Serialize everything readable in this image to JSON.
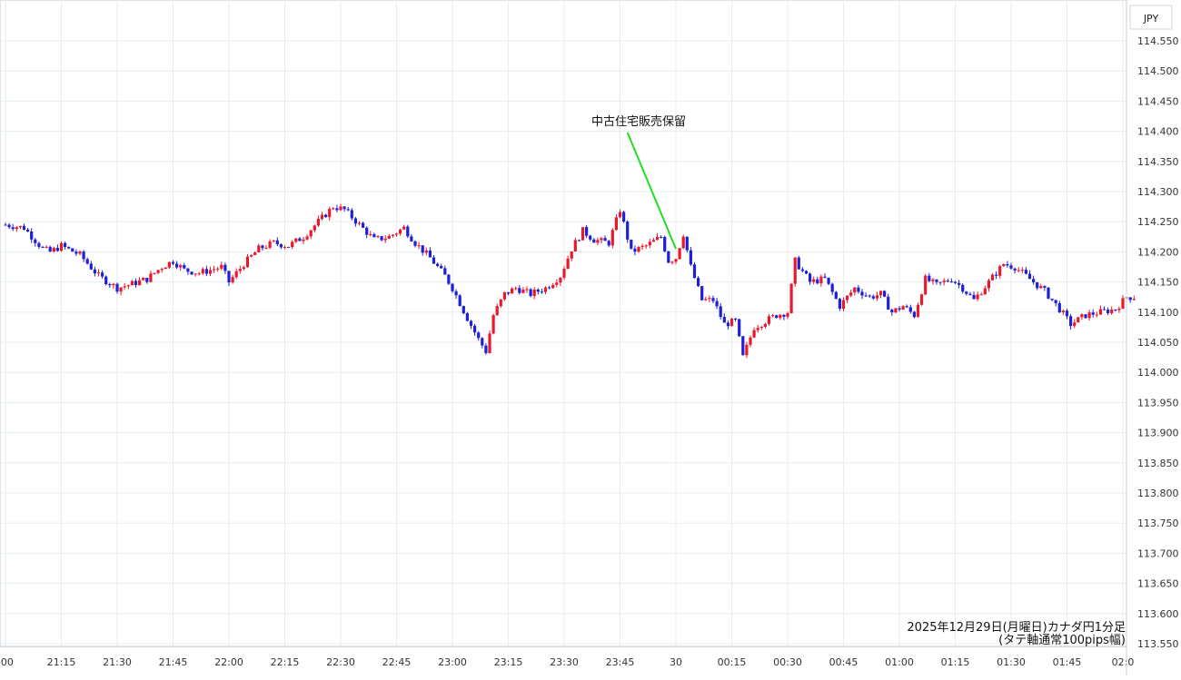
{
  "chart_data": {
    "type": "candlestick",
    "currency_label": "JPY",
    "caption_line1": "2025年12月29日(月曜日)カナダ円1分足",
    "caption_line2": "(タテ軸通常100pips幅)",
    "annotation": "中古住宅販売保留",
    "ylim": [
      113.55,
      114.58
    ],
    "y_ticks": [
      "114.550",
      "114.500",
      "114.450",
      "114.400",
      "114.350",
      "114.300",
      "114.250",
      "114.200",
      "114.150",
      "114.100",
      "114.050",
      "114.000",
      "113.950",
      "113.900",
      "113.850",
      "113.800",
      "113.750",
      "113.700",
      "113.650",
      "113.600",
      "113.550"
    ],
    "x_ticks": [
      ":00",
      "21:15",
      "21:30",
      "21:45",
      "22:00",
      "22:15",
      "22:30",
      "22:45",
      "23:00",
      "23:15",
      "23:30",
      "23:45",
      "30",
      "00:15",
      "00:30",
      "00:45",
      "01:00",
      "01:15",
      "01:30",
      "01:45",
      "02:0"
    ],
    "grid": true,
    "colors": {
      "up": "#e8192c",
      "down": "#1f1fd6",
      "annotation_line": "#22dd22",
      "grid": "#e6eef2"
    },
    "series": [
      {
        "t": "21:00",
        "close": 114.245
      },
      {
        "t": "21:05",
        "close": 114.24
      },
      {
        "t": "21:10",
        "close": 114.205
      },
      {
        "t": "21:12",
        "close": 114.2
      },
      {
        "t": "21:15",
        "close": 114.21
      },
      {
        "t": "21:20",
        "close": 114.195
      },
      {
        "t": "21:25",
        "close": 114.16
      },
      {
        "t": "21:30",
        "close": 114.14
      },
      {
        "t": "21:33",
        "close": 114.145
      },
      {
        "t": "21:38",
        "close": 114.155
      },
      {
        "t": "21:42",
        "close": 114.175
      },
      {
        "t": "21:45",
        "close": 114.185
      },
      {
        "t": "21:48",
        "close": 114.17
      },
      {
        "t": "21:52",
        "close": 114.165
      },
      {
        "t": "21:58",
        "close": 114.175
      },
      {
        "t": "22:00",
        "close": 114.15
      },
      {
        "t": "22:04",
        "close": 114.18
      },
      {
        "t": "22:08",
        "close": 114.205
      },
      {
        "t": "22:12",
        "close": 114.215
      },
      {
        "t": "22:16",
        "close": 114.21
      },
      {
        "t": "22:20",
        "close": 114.225
      },
      {
        "t": "22:24",
        "close": 114.25
      },
      {
        "t": "22:28",
        "close": 114.275
      },
      {
        "t": "22:31",
        "close": 114.27
      },
      {
        "t": "22:35",
        "close": 114.245
      },
      {
        "t": "22:39",
        "close": 114.22
      },
      {
        "t": "22:43",
        "close": 114.225
      },
      {
        "t": "22:47",
        "close": 114.24
      },
      {
        "t": "22:50",
        "close": 114.215
      },
      {
        "t": "22:54",
        "close": 114.19
      },
      {
        "t": "22:58",
        "close": 114.16
      },
      {
        "t": "23:00",
        "close": 114.14
      },
      {
        "t": "23:04",
        "close": 114.09
      },
      {
        "t": "23:07",
        "close": 114.055
      },
      {
        "t": "23:09",
        "close": 114.035
      },
      {
        "t": "23:11",
        "close": 114.095
      },
      {
        "t": "23:14",
        "close": 114.13
      },
      {
        "t": "23:17",
        "close": 114.14
      },
      {
        "t": "23:21",
        "close": 114.13
      },
      {
        "t": "23:25",
        "close": 114.14
      },
      {
        "t": "23:29",
        "close": 114.16
      },
      {
        "t": "23:32",
        "close": 114.205
      },
      {
        "t": "23:35",
        "close": 114.235
      },
      {
        "t": "23:38",
        "close": 114.22
      },
      {
        "t": "23:42",
        "close": 114.215
      },
      {
        "t": "23:45",
        "close": 114.27
      },
      {
        "t": "23:48",
        "close": 114.2
      },
      {
        "t": "23:52",
        "close": 114.21
      },
      {
        "t": "23:56",
        "close": 114.225
      },
      {
        "t": "23:58",
        "close": 114.185
      },
      {
        "t": "00:00",
        "close": 114.19
      },
      {
        "t": "00:02",
        "close": 114.23
      },
      {
        "t": "00:04",
        "close": 114.175
      },
      {
        "t": "00:07",
        "close": 114.12
      },
      {
        "t": "00:10",
        "close": 114.12
      },
      {
        "t": "00:13",
        "close": 114.08
      },
      {
        "t": "00:16",
        "close": 114.085
      },
      {
        "t": "00:18",
        "close": 114.025
      },
      {
        "t": "00:21",
        "close": 114.075
      },
      {
        "t": "00:24",
        "close": 114.085
      },
      {
        "t": "00:27",
        "close": 114.095
      },
      {
        "t": "00:30",
        "close": 114.1
      },
      {
        "t": "00:32",
        "close": 114.185
      },
      {
        "t": "00:36",
        "close": 114.15
      },
      {
        "t": "00:40",
        "close": 114.155
      },
      {
        "t": "00:44",
        "close": 114.11
      },
      {
        "t": "00:48",
        "close": 114.14
      },
      {
        "t": "00:52",
        "close": 114.125
      },
      {
        "t": "00:55",
        "close": 114.13
      },
      {
        "t": "00:58",
        "close": 114.1
      },
      {
        "t": "01:01",
        "close": 114.11
      },
      {
        "t": "01:04",
        "close": 114.095
      },
      {
        "t": "01:07",
        "close": 114.155
      },
      {
        "t": "01:10",
        "close": 114.145
      },
      {
        "t": "01:14",
        "close": 114.155
      },
      {
        "t": "01:17",
        "close": 114.14
      },
      {
        "t": "01:20",
        "close": 114.12
      },
      {
        "t": "01:24",
        "close": 114.15
      },
      {
        "t": "01:28",
        "close": 114.18
      },
      {
        "t": "01:31",
        "close": 114.175
      },
      {
        "t": "01:35",
        "close": 114.155
      },
      {
        "t": "01:39",
        "close": 114.135
      },
      {
        "t": "01:43",
        "close": 114.105
      },
      {
        "t": "01:46",
        "close": 114.08
      },
      {
        "t": "01:50",
        "close": 114.095
      },
      {
        "t": "01:54",
        "close": 114.1
      },
      {
        "t": "01:58",
        "close": 114.105
      },
      {
        "t": "02:01",
        "close": 114.125
      },
      {
        "t": "02:03",
        "close": 114.125
      }
    ]
  }
}
